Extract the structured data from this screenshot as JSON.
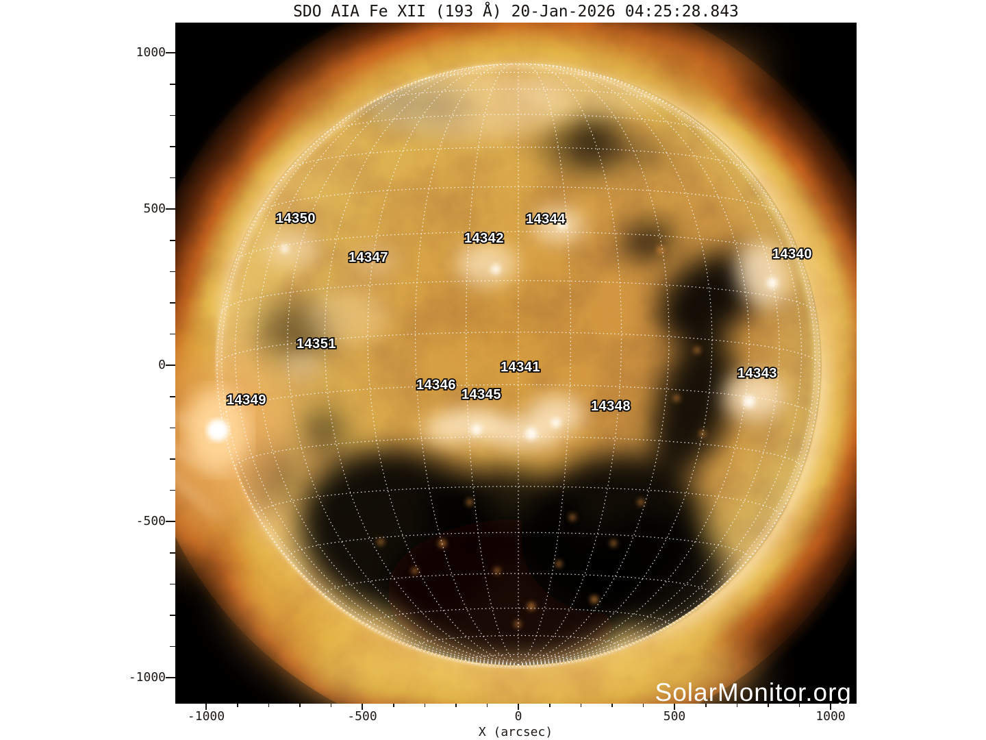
{
  "title": "SDO AIA Fe XII (193 Å) 20-Jan-2026 04:25:28.843",
  "watermark": "SolarMonitor.org",
  "axes": {
    "x_label": "X (arcsec)",
    "x_ticks": [
      -1000,
      -500,
      0,
      500,
      1000
    ],
    "y_ticks": [
      1000,
      500,
      0,
      -500,
      -1000
    ],
    "minor_step_arcsec": 100,
    "range_arcsec": [
      -1090,
      1090
    ]
  },
  "solar": {
    "limb_radius_arcsec": 965,
    "grid_spacing_deg": 10,
    "b0_deg": -6.3
  },
  "active_regions": [
    {
      "noaa": "14350",
      "x_arcsec": -713,
      "y_arcsec": 471
    },
    {
      "noaa": "14344",
      "x_arcsec": 88,
      "y_arcsec": 469
    },
    {
      "noaa": "14342",
      "x_arcsec": -110,
      "y_arcsec": 408
    },
    {
      "noaa": "14347",
      "x_arcsec": -480,
      "y_arcsec": 347
    },
    {
      "noaa": "14340",
      "x_arcsec": 877,
      "y_arcsec": 357
    },
    {
      "noaa": "14351",
      "x_arcsec": -647,
      "y_arcsec": 70
    },
    {
      "noaa": "14341",
      "x_arcsec": 7,
      "y_arcsec": -4
    },
    {
      "noaa": "14343",
      "x_arcsec": 765,
      "y_arcsec": -24
    },
    {
      "noaa": "14346",
      "x_arcsec": -263,
      "y_arcsec": -61
    },
    {
      "noaa": "14345",
      "x_arcsec": -118,
      "y_arcsec": -92
    },
    {
      "noaa": "14349",
      "x_arcsec": -871,
      "y_arcsec": -110
    },
    {
      "noaa": "14348",
      "x_arcsec": 296,
      "y_arcsec": -129
    }
  ],
  "colors": {
    "page_background": "#ffffff",
    "plot_background": "#000000",
    "grid_dots": "#ffffff",
    "label_fill": "#ffffff",
    "label_outline": "#000000",
    "tick_text": "#1c1814",
    "corona_bright": "#eabc7c",
    "corona_mid": "#c98d47",
    "corona_dark": "#8a4a1a"
  },
  "chart_data": {
    "type": "scatter",
    "title": "SDO AIA Fe XII (193 Å) 20-Jan-2026 04:25:28.843",
    "xlabel": "X (arcsec)",
    "ylabel": "",
    "xlim": [
      -1090,
      1090
    ],
    "ylim": [
      -1090,
      1090
    ],
    "x_ticks": [
      -1000,
      -500,
      0,
      500,
      1000
    ],
    "y_ticks": [
      1000,
      500,
      0,
      -500,
      -1000
    ],
    "grid": "heliographic dotted grid, 10 deg spacing, solar limb at 965 arcsec",
    "legend_position": "none",
    "points": [
      {
        "label": "14350",
        "x": -713,
        "y": 471
      },
      {
        "label": "14344",
        "x": 88,
        "y": 469
      },
      {
        "label": "14342",
        "x": -110,
        "y": 408
      },
      {
        "label": "14347",
        "x": -480,
        "y": 347
      },
      {
        "label": "14340",
        "x": 877,
        "y": 357
      },
      {
        "label": "14351",
        "x": -647,
        "y": 70
      },
      {
        "label": "14341",
        "x": 7,
        "y": -4
      },
      {
        "label": "14343",
        "x": 765,
        "y": -24
      },
      {
        "label": "14346",
        "x": -263,
        "y": -61
      },
      {
        "label": "14345",
        "x": -118,
        "y": -92
      },
      {
        "label": "14349",
        "x": -871,
        "y": -110
      },
      {
        "label": "14348",
        "x": 296,
        "y": -129
      }
    ],
    "annotations": [
      "SolarMonitor.org"
    ]
  }
}
